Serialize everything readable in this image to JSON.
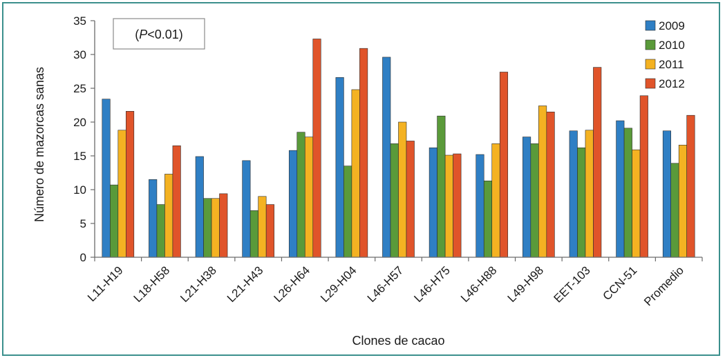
{
  "chart_data": {
    "type": "bar",
    "xlabel": "Clones de cacao",
    "ylabel": "Número de mazorcas sanas",
    "ylim": [
      0,
      35
    ],
    "yticks": [
      0,
      5,
      10,
      15,
      20,
      25,
      30,
      35
    ],
    "annotation_prefix": "(",
    "annotation_p": "P",
    "annotation_suffix": "<0.01)",
    "legend_position": "top-right",
    "grid": false,
    "categories": [
      "L11-H19",
      "L18-H58",
      "L21-H38",
      "L21-H43",
      "L26-H64",
      "L29-H04",
      "L46-H57",
      "L46-H75",
      "L46-H88",
      "L49-H98",
      "EET-103",
      "CCN-51",
      "Promedio"
    ],
    "series": [
      {
        "name": "2009",
        "color": "#2f7fc4",
        "values": [
          23.4,
          11.5,
          14.9,
          14.3,
          15.8,
          26.6,
          29.6,
          16.2,
          15.2,
          17.8,
          18.7,
          20.2,
          18.7
        ]
      },
      {
        "name": "2010",
        "color": "#5a9a3a",
        "values": [
          10.7,
          7.8,
          8.7,
          6.9,
          18.5,
          13.5,
          16.8,
          20.9,
          11.3,
          16.8,
          16.2,
          19.1,
          13.9
        ]
      },
      {
        "name": "2011",
        "color": "#f4b222",
        "values": [
          18.8,
          12.3,
          8.7,
          9.0,
          17.8,
          24.8,
          20.0,
          15.1,
          16.8,
          22.4,
          18.8,
          15.9,
          16.6
        ]
      },
      {
        "name": "2012",
        "color": "#e0542a",
        "values": [
          21.6,
          16.5,
          9.4,
          7.8,
          32.3,
          30.9,
          17.2,
          15.3,
          27.4,
          21.5,
          28.1,
          23.9,
          21.0
        ]
      }
    ]
  }
}
